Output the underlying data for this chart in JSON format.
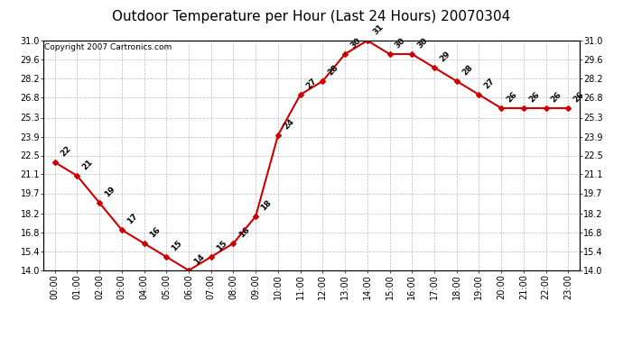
{
  "title": "Outdoor Temperature per Hour (Last 24 Hours) 20070304",
  "copyright_text": "Copyright 2007 Cartronics.com",
  "hours": [
    "00:00",
    "01:00",
    "02:00",
    "03:00",
    "04:00",
    "05:00",
    "06:00",
    "07:00",
    "08:00",
    "09:00",
    "10:00",
    "11:00",
    "12:00",
    "13:00",
    "14:00",
    "15:00",
    "16:00",
    "17:00",
    "18:00",
    "19:00",
    "20:00",
    "21:00",
    "22:00",
    "23:00"
  ],
  "temperatures": [
    22,
    21,
    19,
    17,
    16,
    15,
    14,
    15,
    16,
    18,
    24,
    27,
    28,
    30,
    31,
    30,
    30,
    29,
    28,
    27,
    26,
    26,
    26,
    26
  ],
  "line_color": "#cc0000",
  "marker_color": "#cc0000",
  "bg_color": "#ffffff",
  "grid_color": "#bbbbbb",
  "title_fontsize": 11,
  "label_fontsize": 7,
  "annotation_fontsize": 6.5,
  "copyright_fontsize": 6.5,
  "ylim_min": 14.0,
  "ylim_max": 31.0,
  "yticks": [
    14.0,
    15.4,
    16.8,
    18.2,
    19.7,
    21.1,
    22.5,
    23.9,
    25.3,
    26.8,
    28.2,
    29.6,
    31.0
  ]
}
